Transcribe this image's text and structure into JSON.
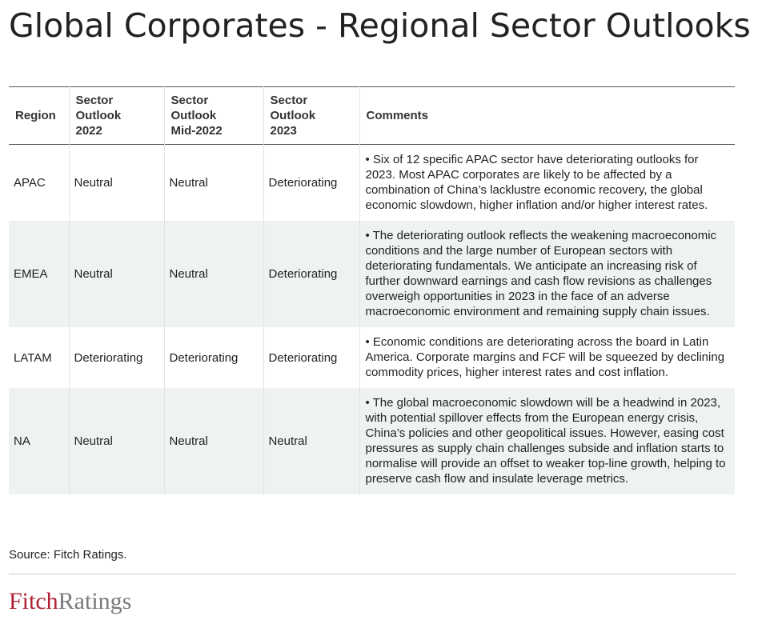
{
  "title": "Global Corporates - Regional Sector Outlooks",
  "table": {
    "headers": [
      "Region",
      "Sector Outlook 2022",
      "Sector Outlook Mid-2022",
      "Sector Outlook 2023",
      "Comments"
    ],
    "header_lines": [
      [
        "Region"
      ],
      [
        "Sector",
        "Outlook",
        "2022"
      ],
      [
        "Sector",
        "Outlook",
        "Mid-2022"
      ],
      [
        "Sector",
        "Outlook",
        "2023"
      ],
      [
        "Comments"
      ]
    ],
    "rows": [
      {
        "region": "APAC",
        "outlook_2022": "Neutral",
        "outlook_mid_2022": "Neutral",
        "outlook_2023": "Deteriorating",
        "comment": "• Six of 12 specific APAC sector have deteriorating outlooks for 2023. Most APAC corporates are likely to be affected by a combination of China’s lacklustre economic recovery, the global economic slowdown, higher inflation and/or higher interest rates."
      },
      {
        "region": "EMEA",
        "outlook_2022": "Neutral",
        "outlook_mid_2022": "Neutral",
        "outlook_2023": "Deteriorating",
        "comment": "• The deteriorating outlook reflects the weakening macroeconomic conditions and the large number of European sectors with deteriorating fundamentals. We anticipate an increasing risk of further downward earnings and cash flow revisions as challenges overweigh opportunities in 2023 in the face of an adverse macroeconomic environment and remaining supply chain issues."
      },
      {
        "region": "LATAM",
        "outlook_2022": "Deteriorating",
        "outlook_mid_2022": "Deteriorating",
        "outlook_2023": "Deteriorating",
        "comment": "• Economic conditions are deteriorating across the board in Latin America. Corporate margins and FCF will be squeezed by declining commodity prices, higher interest rates and cost inflation."
      },
      {
        "region": "NA",
        "outlook_2022": "Neutral",
        "outlook_mid_2022": "Neutral",
        "outlook_2023": "Neutral",
        "comment": "• The global macroeconomic slowdown will be a headwind in 2023, with potential spillover effects from the European energy crisis, China’s policies and other geopolitical issues. However, easing cost pressures as supply chain challenges subside and inflation starts to normalise will provide an offset to weaker top-line growth, helping to preserve cash flow and insulate leverage metrics."
      }
    ]
  },
  "source": "Source: Fitch Ratings.",
  "logo": {
    "part1": "Fitch",
    "part2": "Ratings"
  },
  "colors": {
    "brand_red": "#b01f32",
    "brand_gray": "#7a7a7a",
    "row_shade": "#eef2f2",
    "rule": "#555555"
  }
}
